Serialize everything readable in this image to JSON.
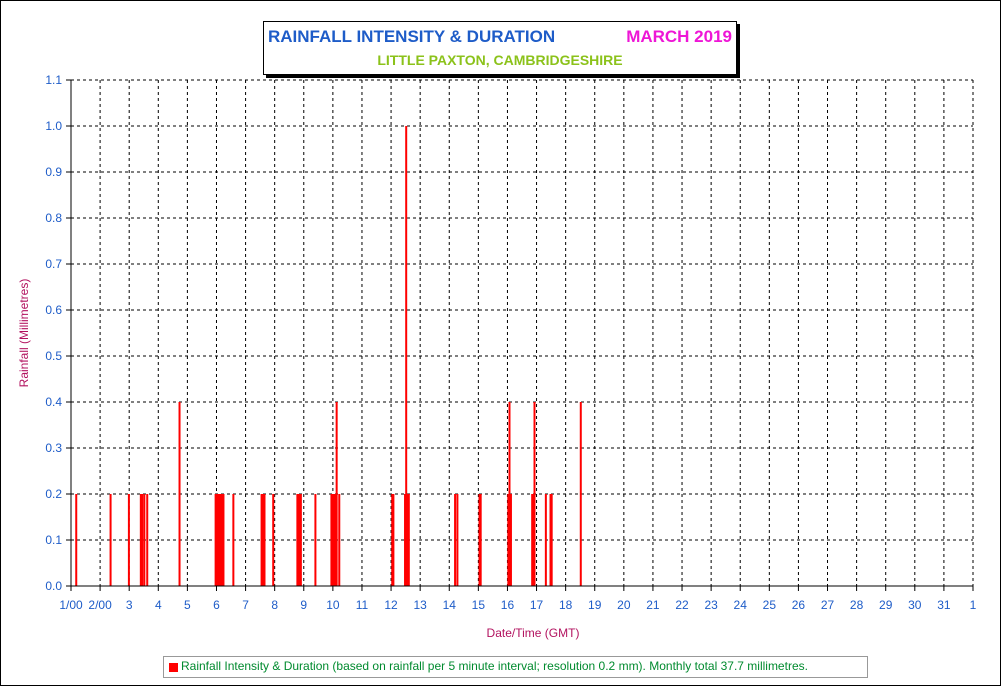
{
  "title": {
    "main": "RAINFALL INTENSITY & DURATION",
    "month": "MARCH 2019",
    "subtitle": "LITTLE PAXTON, CAMBRIDGESHIRE"
  },
  "legend": {
    "text": "Rainfall Intensity & Duration (based on rainfall per 5 minute interval; resolution 0.2 mm). Monthly total 37.7 millimetres."
  },
  "colors": {
    "bars": "#ff0000",
    "title": "#1e5cc8",
    "month": "#ee16d6",
    "subtitle": "#8bc21a",
    "tick_labels": "#1e5cc8",
    "axis_titles": "#b2125f",
    "legend_text": "#008a2e"
  },
  "chart_data": {
    "type": "bar",
    "title": "RAINFALL INTENSITY & DURATION",
    "xlabel": "Date/Time (GMT)",
    "ylabel": "Rainfall (Millimetres)",
    "ylim": [
      0,
      1.1
    ],
    "yticks": [
      "0.0",
      "0.1",
      "0.2",
      "0.3",
      "0.4",
      "0.5",
      "0.6",
      "0.7",
      "0.8",
      "0.9",
      "1.0",
      "1.1"
    ],
    "xlim": [
      1,
      32
    ],
    "xticks": [
      "1/00",
      "2/00",
      "3",
      "4",
      "5",
      "6",
      "7",
      "8",
      "9",
      "10",
      "11",
      "12",
      "13",
      "14",
      "15",
      "16",
      "17",
      "18",
      "19",
      "20",
      "21",
      "22",
      "23",
      "24",
      "25",
      "26",
      "27",
      "28",
      "29",
      "30",
      "31",
      "1"
    ],
    "grid": true,
    "legend_position": "bottom",
    "series": [
      {
        "name": "Rainfall Intensity & Duration (based on rainfall per 5 minute interval; resolution 0.2 mm). Monthly total 37.7 millimetres.",
        "points": [
          {
            "day": 1.18,
            "value": 0.2
          },
          {
            "day": 2.36,
            "value": 0.2
          },
          {
            "day": 2.99,
            "value": 0.2
          },
          {
            "day": 3.4,
            "value": 0.2
          },
          {
            "day": 3.45,
            "value": 0.2
          },
          {
            "day": 3.52,
            "value": 0.2
          },
          {
            "day": 3.62,
            "value": 0.2
          },
          {
            "day": 4.73,
            "value": 0.4
          },
          {
            "day": 5.97,
            "value": 0.2
          },
          {
            "day": 6.0,
            "value": 0.2
          },
          {
            "day": 6.04,
            "value": 0.2
          },
          {
            "day": 6.08,
            "value": 0.2
          },
          {
            "day": 6.12,
            "value": 0.2
          },
          {
            "day": 6.16,
            "value": 0.2
          },
          {
            "day": 6.2,
            "value": 0.2
          },
          {
            "day": 6.24,
            "value": 0.2
          },
          {
            "day": 6.58,
            "value": 0.2
          },
          {
            "day": 7.55,
            "value": 0.2
          },
          {
            "day": 7.6,
            "value": 0.2
          },
          {
            "day": 7.65,
            "value": 0.2
          },
          {
            "day": 7.95,
            "value": 0.2
          },
          {
            "day": 8.78,
            "value": 0.2
          },
          {
            "day": 8.82,
            "value": 0.2
          },
          {
            "day": 8.86,
            "value": 0.2
          },
          {
            "day": 8.9,
            "value": 0.2
          },
          {
            "day": 9.4,
            "value": 0.2
          },
          {
            "day": 9.95,
            "value": 0.2
          },
          {
            "day": 9.99,
            "value": 0.2
          },
          {
            "day": 10.03,
            "value": 0.2
          },
          {
            "day": 10.08,
            "value": 0.2
          },
          {
            "day": 10.13,
            "value": 0.4
          },
          {
            "day": 10.22,
            "value": 0.2
          },
          {
            "day": 12.04,
            "value": 0.2
          },
          {
            "day": 12.08,
            "value": 0.2
          },
          {
            "day": 12.48,
            "value": 0.2
          },
          {
            "day": 12.52,
            "value": 1.0
          },
          {
            "day": 12.57,
            "value": 0.2
          },
          {
            "day": 12.61,
            "value": 0.2
          },
          {
            "day": 14.2,
            "value": 0.2
          },
          {
            "day": 14.28,
            "value": 0.2
          },
          {
            "day": 15.04,
            "value": 0.2
          },
          {
            "day": 15.08,
            "value": 0.2
          },
          {
            "day": 16.03,
            "value": 0.2
          },
          {
            "day": 16.07,
            "value": 0.4
          },
          {
            "day": 16.12,
            "value": 0.2
          },
          {
            "day": 16.85,
            "value": 0.2
          },
          {
            "day": 16.89,
            "value": 0.2
          },
          {
            "day": 16.93,
            "value": 0.4
          },
          {
            "day": 17.32,
            "value": 0.2
          },
          {
            "day": 17.48,
            "value": 0.2
          },
          {
            "day": 17.52,
            "value": 0.2
          },
          {
            "day": 18.52,
            "value": 0.4
          }
        ]
      }
    ]
  }
}
